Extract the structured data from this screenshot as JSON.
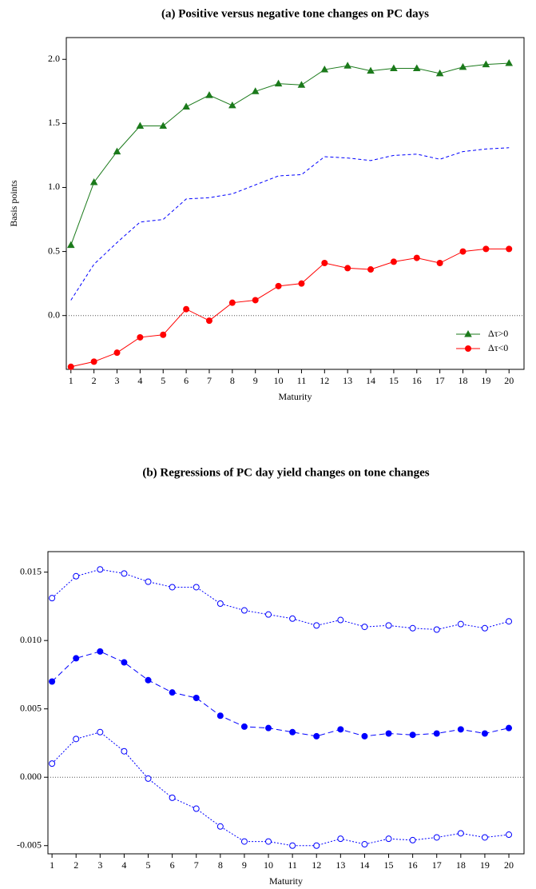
{
  "chart_data": [
    {
      "type": "line",
      "title": "(a) Positive versus negative tone changes on PC days",
      "y_label": "Basis points",
      "x_label": "Maturity",
      "x": [
        1,
        2,
        3,
        4,
        5,
        6,
        7,
        8,
        9,
        10,
        11,
        12,
        13,
        14,
        15,
        16,
        17,
        18,
        19,
        20
      ],
      "xlim": [
        0.8,
        20.65
      ],
      "xticks": [
        1,
        2,
        3,
        4,
        5,
        6,
        7,
        8,
        9,
        10,
        11,
        12,
        13,
        14,
        15,
        16,
        17,
        18,
        19,
        20
      ],
      "ylim": [
        -0.42,
        2.17
      ],
      "yticks": [
        {
          "value": 0,
          "label": "0.0"
        },
        {
          "value": 0.5,
          "label": "0.5"
        },
        {
          "value": 1,
          "label": "1.0"
        },
        {
          "value": 1.5,
          "label": "1.5"
        },
        {
          "value": 2,
          "label": "2.0"
        }
      ],
      "hline": 0,
      "legend": "bottom-right",
      "series": [
        {
          "name": "Δτ>0",
          "color": "#1b7a1b",
          "marker": "triangle",
          "dash": "solid",
          "values": [
            0.55,
            1.04,
            1.28,
            1.48,
            1.48,
            1.63,
            1.72,
            1.64,
            1.75,
            1.81,
            1.8,
            1.92,
            1.95,
            1.91,
            1.93,
            1.93,
            1.89,
            1.94,
            1.96,
            1.97
          ]
        },
        {
          "color": "#0000ff",
          "marker": "none",
          "dash": "dashed",
          "values": [
            0.12,
            0.4,
            0.57,
            0.73,
            0.75,
            0.91,
            0.92,
            0.95,
            1.02,
            1.09,
            1.1,
            1.24,
            1.23,
            1.21,
            1.25,
            1.26,
            1.22,
            1.28,
            1.3,
            1.31
          ]
        },
        {
          "name": "Δτ<0",
          "color": "#ff0000",
          "marker": "circle",
          "dash": "solid",
          "values": [
            -0.4,
            -0.36,
            -0.29,
            -0.17,
            -0.15,
            0.05,
            -0.04,
            0.1,
            0.12,
            0.23,
            0.25,
            0.41,
            0.37,
            0.36,
            0.42,
            0.45,
            0.41,
            0.5,
            0.52,
            0.52
          ]
        }
      ]
    },
    {
      "type": "line",
      "title": "(b) Regressions of PC day yield changes on tone changes",
      "x_label": "Maturity",
      "x": [
        1,
        2,
        3,
        4,
        5,
        6,
        7,
        8,
        9,
        10,
        11,
        12,
        13,
        14,
        15,
        16,
        17,
        18,
        19,
        20
      ],
      "xlim": [
        0.83,
        20.63
      ],
      "xticks": [
        1,
        2,
        3,
        4,
        5,
        6,
        7,
        8,
        9,
        10,
        11,
        12,
        13,
        14,
        15,
        16,
        17,
        18,
        19,
        20
      ],
      "ylim": [
        -0.0056,
        0.0165
      ],
      "yticks": [
        {
          "value": -0.005,
          "label": "-0.005"
        },
        {
          "value": 0,
          "label": "0.000"
        },
        {
          "value": 0.005,
          "label": "0.005"
        },
        {
          "value": 0.01,
          "label": "0.010"
        },
        {
          "value": 0.015,
          "label": "0.015"
        }
      ],
      "hline": 0,
      "series": [
        {
          "color": "#0000ff",
          "marker": "open-circle",
          "dash": "dotted",
          "values": [
            0.0131,
            0.0147,
            0.0152,
            0.0149,
            0.0143,
            0.0139,
            0.0139,
            0.0127,
            0.0122,
            0.0119,
            0.0116,
            0.0111,
            0.0115,
            0.011,
            0.0111,
            0.0109,
            0.0108,
            0.0112,
            0.0109,
            0.0114
          ]
        },
        {
          "color": "#0000ff",
          "marker": "circle",
          "dash": "longdash",
          "values": [
            0.007,
            0.0087,
            0.0092,
            0.0084,
            0.0071,
            0.0062,
            0.0058,
            0.0045,
            0.0037,
            0.0036,
            0.0033,
            0.003,
            0.0035,
            0.003,
            0.0032,
            0.0031,
            0.0032,
            0.0035,
            0.0032,
            0.0036
          ]
        },
        {
          "color": "#0000ff",
          "marker": "open-circle",
          "dash": "dotted",
          "values": [
            0.001,
            0.0028,
            0.0033,
            0.0019,
            -0.0001,
            -0.0015,
            -0.0023,
            -0.0036,
            -0.0047,
            -0.0047,
            -0.005,
            -0.005,
            -0.0045,
            -0.0049,
            -0.0045,
            -0.0046,
            -0.0044,
            -0.0041,
            -0.0044,
            -0.0042
          ]
        }
      ]
    }
  ]
}
